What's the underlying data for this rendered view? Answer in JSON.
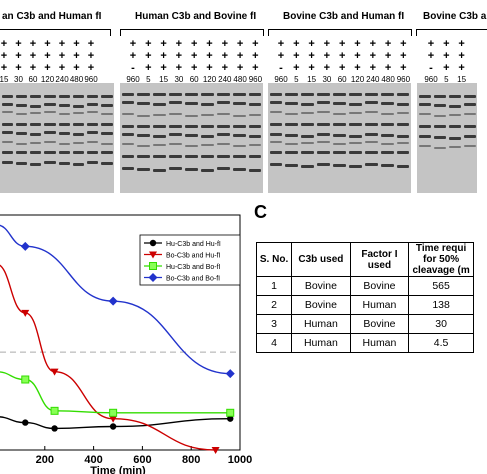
{
  "panelA": {
    "groups": [
      {
        "title": "an C3b and Human fI"
      },
      {
        "title": "Human C3b and Bovine fI"
      },
      {
        "title": "Bovine C3b and Human fI"
      },
      {
        "title": "Bovine C3b a"
      }
    ],
    "row_plus": "+",
    "row_minus": "-",
    "times_group1": [
      "15",
      "30",
      "60",
      "120",
      "240",
      "480",
      "960"
    ],
    "times_group2": [
      "960",
      "5",
      "15",
      "30",
      "60",
      "120",
      "240",
      "480",
      "960"
    ],
    "times_group3": [
      "960",
      "5",
      "15",
      "30",
      "60",
      "120",
      "240",
      "480",
      "960"
    ],
    "times_group4": [
      "960",
      "5",
      "15"
    ]
  },
  "panelB": {
    "xlabel": "Time (min)",
    "legend": [
      "Hu-C3b and Hu-fI",
      "Bo-C3b and Hu-fI",
      "Hu-C3b and Bo-fI",
      "Bo-C3b and Bo-fI"
    ]
  },
  "chart_data": {
    "type": "line",
    "xlabel": "Time (min)",
    "ylabel": "",
    "xlim": [
      0,
      1000
    ],
    "xticks": [
      "200",
      "400",
      "600",
      "800",
      "1000"
    ],
    "reference_line": "dashed horizontal line (50%)",
    "legend_position": "top-right",
    "series": [
      {
        "name": "Hu-C3b and Hu-fI",
        "color": "#000000",
        "marker": "circle",
        "x": [
          0,
          120,
          240,
          480,
          960
        ],
        "y": [
          17,
          14,
          11,
          12,
          16
        ]
      },
      {
        "name": "Bo-C3b and Hu-fI",
        "color": "#cc0000",
        "marker": "triangle-down",
        "x": [
          0,
          120,
          240,
          480,
          900
        ],
        "y": [
          95,
          70,
          40,
          16,
          0
        ]
      },
      {
        "name": "Hu-C3b and Bo-fI",
        "color": "#33dd00",
        "marker": "square",
        "x": [
          0,
          120,
          240,
          480,
          960
        ],
        "y": [
          40,
          36,
          20,
          19,
          19
        ]
      },
      {
        "name": "Bo-C3b and Bo-fI",
        "color": "#2233cc",
        "marker": "diamond",
        "x": [
          0,
          120,
          480,
          960
        ],
        "y": [
          115,
          104,
          76,
          39
        ]
      }
    ]
  },
  "panelC": {
    "label": "C",
    "headers": [
      "S. No.",
      "C3b used",
      "Factor I used",
      "Time requi for 50% cleavage (m"
    ],
    "rows": [
      [
        "1",
        "Bovine",
        "Bovine",
        "565"
      ],
      [
        "2",
        "Bovine",
        "Human",
        "138"
      ],
      [
        "3",
        "Human",
        "Bovine",
        "30"
      ],
      [
        "4",
        "Human",
        "Human",
        "4.5"
      ]
    ]
  }
}
